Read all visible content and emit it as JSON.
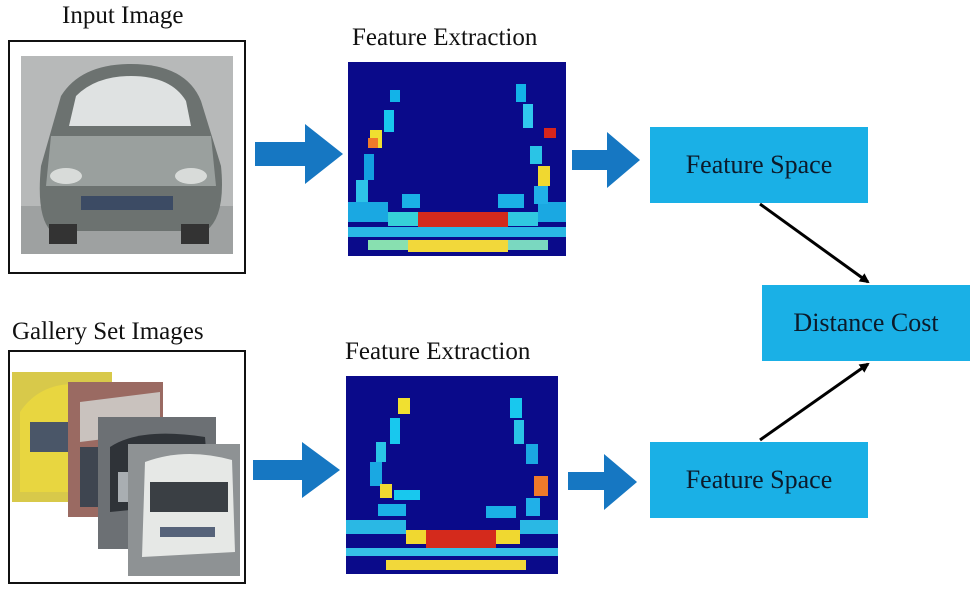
{
  "labels": {
    "input_image": "Input Image",
    "gallery_set": "Gallery Set Images",
    "feature_extraction_top": "Feature Extraction",
    "feature_extraction_bottom": "Feature Extraction"
  },
  "boxes": {
    "feature_space_top": "Feature Space",
    "distance_cost": "Distance Cost",
    "feature_space_bottom": "Feature Space"
  },
  "colors": {
    "arrow_blue": "#1677c2",
    "box_blue": "#1ab0e6",
    "heat_background": "#0a0a8a"
  },
  "icons": {
    "input_photo": "car-photo-icon",
    "gallery_photos": "car-gallery-icon",
    "heatmap": "feature-heatmap-icon"
  }
}
